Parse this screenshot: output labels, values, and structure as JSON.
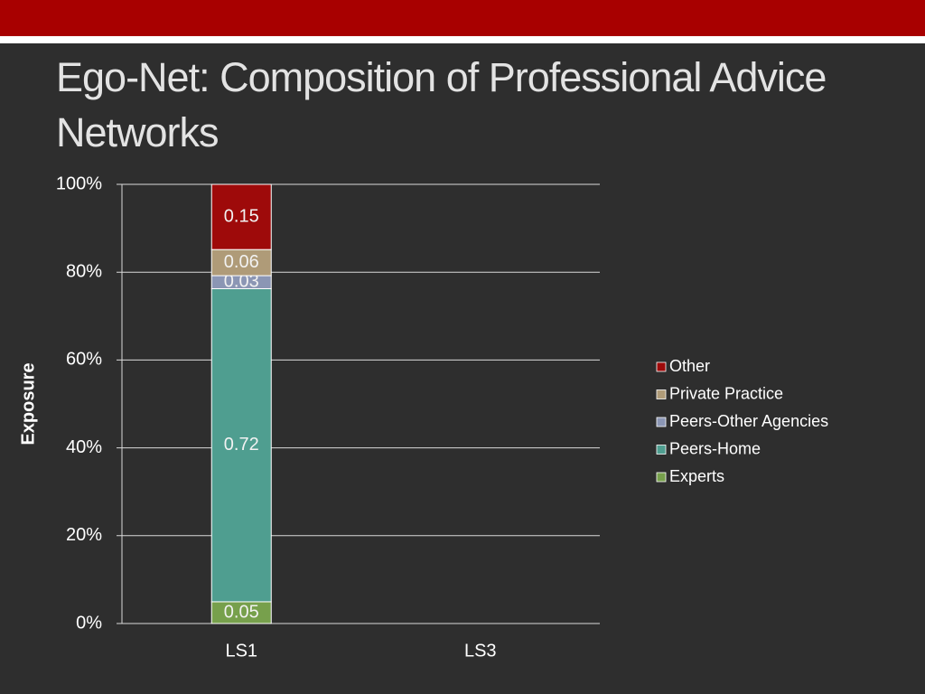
{
  "chart_data": {
    "type": "bar",
    "stacking": "percent",
    "title": "Ego-Net: Composition of Professional Advice Networks",
    "y_label": "Exposure",
    "categories": [
      "LS1",
      "LS3"
    ],
    "series": [
      {
        "name": "Experts",
        "color": "#77a04c",
        "values": [
          0.05,
          null
        ]
      },
      {
        "name": "Peers-Home",
        "color": "#4f9e90",
        "values": [
          0.72,
          null
        ]
      },
      {
        "name": "Peers-Other Agencies",
        "color": "#8b96b4",
        "values": [
          0.03,
          null
        ]
      },
      {
        "name": "Private Practice",
        "color": "#af9b78",
        "values": [
          0.06,
          null
        ]
      },
      {
        "name": "Other",
        "color": "#9e0a0a",
        "values": [
          0.15,
          null
        ]
      }
    ],
    "ylim": [
      0,
      1
    ],
    "yticks": [
      {
        "value": 0,
        "label": "0%"
      },
      {
        "value": 0.2,
        "label": "20%"
      },
      {
        "value": 0.4,
        "label": "40%"
      },
      {
        "value": 0.6,
        "label": "60%"
      },
      {
        "value": 0.8,
        "label": "80%"
      },
      {
        "value": 1,
        "label": "100%"
      }
    ],
    "grid": true,
    "legend": "right",
    "data_labels": true
  }
}
